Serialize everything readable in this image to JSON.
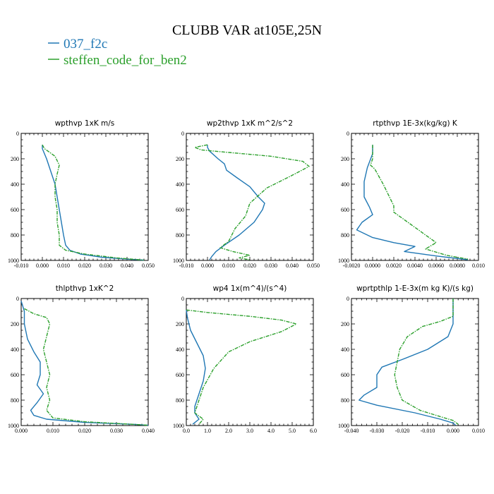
{
  "figure": {
    "title": "CLUBB VAR at105E,25N",
    "legend": [
      {
        "name": "037_f2c",
        "color": "#1f77b4"
      },
      {
        "name": "steffen_code_for_ben2",
        "color": "#2ca02c"
      }
    ]
  },
  "chart_data": [
    {
      "type": "line",
      "title": "wpthvp  1xK m/s",
      "xlim": [
        -0.01,
        0.05
      ],
      "ylim": [
        0,
        1000
      ],
      "y_inverted": true,
      "xticks": [
        "-0.010",
        "0.000",
        "0.010",
        "0.020",
        "0.030",
        "0.040",
        "0.050"
      ],
      "yticks": [
        "0",
        "200",
        "400",
        "600",
        "800",
        "1000"
      ],
      "series": [
        {
          "name": "037_f2c",
          "color": "#1f77b4",
          "dashed": false,
          "points": [
            [
              0.0,
              90
            ],
            [
              0.0,
              120
            ],
            [
              0.002,
              200
            ],
            [
              0.004,
              300
            ],
            [
              0.006,
              400
            ],
            [
              0.007,
              500
            ],
            [
              0.008,
              600
            ],
            [
              0.009,
              700
            ],
            [
              0.01,
              800
            ],
            [
              0.011,
              880
            ],
            [
              0.013,
              920
            ],
            [
              0.018,
              950
            ],
            [
              0.028,
              975
            ],
            [
              0.04,
              990
            ],
            [
              0.048,
              998
            ]
          ]
        },
        {
          "name": "steffen_code_for_ben2",
          "color": "#2ca02c",
          "dashed": true,
          "points": [
            [
              0.0,
              90
            ],
            [
              0.001,
              120
            ],
            [
              0.006,
              180
            ],
            [
              0.008,
              250
            ],
            [
              0.007,
              320
            ],
            [
              0.006,
              400
            ],
            [
              0.006,
              500
            ],
            [
              0.007,
              600
            ],
            [
              0.007,
              700
            ],
            [
              0.008,
              800
            ],
            [
              0.008,
              880
            ],
            [
              0.011,
              920
            ],
            [
              0.02,
              950
            ],
            [
              0.035,
              980
            ],
            [
              0.048,
              998
            ]
          ]
        }
      ]
    },
    {
      "type": "line",
      "title": "wp2thvp  1xK m^2/s^2",
      "xlim": [
        -0.01,
        0.05
      ],
      "ylim": [
        0,
        1000
      ],
      "y_inverted": true,
      "xticks": [
        "-0.010",
        "0.000",
        "0.010",
        "0.020",
        "0.030",
        "0.040",
        "0.050"
      ],
      "yticks": [
        "0",
        "200",
        "400",
        "600",
        "800",
        "1000"
      ],
      "series": [
        {
          "name": "037_f2c",
          "color": "#1f77b4",
          "dashed": false,
          "points": [
            [
              0.0,
              90
            ],
            [
              0.0,
              110
            ],
            [
              0.001,
              140
            ],
            [
              0.005,
              200
            ],
            [
              0.008,
              240
            ],
            [
              0.009,
              290
            ],
            [
              0.014,
              350
            ],
            [
              0.02,
              420
            ],
            [
              0.024,
              500
            ],
            [
              0.027,
              550
            ],
            [
              0.026,
              600
            ],
            [
              0.022,
              700
            ],
            [
              0.015,
              800
            ],
            [
              0.008,
              880
            ],
            [
              0.004,
              930
            ],
            [
              0.002,
              970
            ],
            [
              0.001,
              995
            ]
          ]
        },
        {
          "name": "steffen_code_for_ben2",
          "color": "#2ca02c",
          "dashed": true,
          "points": [
            [
              0.0,
              90
            ],
            [
              -0.006,
              110
            ],
            [
              -0.003,
              130
            ],
            [
              0.01,
              150
            ],
            [
              0.03,
              180
            ],
            [
              0.045,
              220
            ],
            [
              0.048,
              260
            ],
            [
              0.04,
              330
            ],
            [
              0.028,
              430
            ],
            [
              0.02,
              550
            ],
            [
              0.018,
              650
            ],
            [
              0.013,
              750
            ],
            [
              0.01,
              850
            ],
            [
              0.006,
              900
            ],
            [
              0.012,
              930
            ],
            [
              0.02,
              960
            ],
            [
              0.015,
              980
            ],
            [
              0.02,
              995
            ]
          ]
        }
      ]
    },
    {
      "type": "line",
      "title": "rtpthvp  1E-3x(kg/kg) K",
      "xlim": [
        -0.002,
        0.01
      ],
      "ylim": [
        0,
        1000
      ],
      "y_inverted": true,
      "xticks": [
        "-0.0020",
        "0.0000",
        "0.0020",
        "0.0040",
        "0.0060",
        "0.0080",
        "0.010"
      ],
      "yticks": [
        "0",
        "200",
        "400",
        "600",
        "800",
        "1000"
      ],
      "series": [
        {
          "name": "037_f2c",
          "color": "#1f77b4",
          "dashed": false,
          "points": [
            [
              0.0,
              90
            ],
            [
              0.0,
              160
            ],
            [
              -0.0005,
              270
            ],
            [
              -0.0008,
              380
            ],
            [
              -0.0008,
              500
            ],
            [
              -0.0003,
              580
            ],
            [
              0.0,
              640
            ],
            [
              -0.001,
              700
            ],
            [
              -0.0015,
              760
            ],
            [
              0.0,
              820
            ],
            [
              0.002,
              860
            ],
            [
              0.004,
              890
            ],
            [
              0.003,
              930
            ],
            [
              0.006,
              965
            ],
            [
              0.009,
              995
            ]
          ]
        },
        {
          "name": "steffen_code_for_ben2",
          "color": "#2ca02c",
          "dashed": true,
          "points": [
            [
              0.0,
              90
            ],
            [
              0.0,
              200
            ],
            [
              -0.0002,
              250
            ],
            [
              0.0002,
              280
            ],
            [
              0.001,
              400
            ],
            [
              0.002,
              570
            ],
            [
              0.002,
              620
            ],
            [
              0.003,
              680
            ],
            [
              0.004,
              740
            ],
            [
              0.005,
              800
            ],
            [
              0.006,
              860
            ],
            [
              0.005,
              910
            ],
            [
              0.007,
              960
            ],
            [
              0.009,
              990
            ]
          ]
        }
      ]
    },
    {
      "type": "line",
      "title": "thlpthvp  1xK^2",
      "xlim": [
        0.0,
        0.04
      ],
      "ylim": [
        0,
        1000
      ],
      "y_inverted": true,
      "xticks": [
        "0.000",
        "0.010",
        "0.020",
        "0.030",
        "0.040"
      ],
      "yticks": [
        "0",
        "200",
        "400",
        "600",
        "800",
        "1000"
      ],
      "series": [
        {
          "name": "037_f2c",
          "color": "#1f77b4",
          "dashed": false,
          "points": [
            [
              0.0,
              20
            ],
            [
              0.001,
              100
            ],
            [
              0.001,
              200
            ],
            [
              0.002,
              320
            ],
            [
              0.004,
              420
            ],
            [
              0.006,
              500
            ],
            [
              0.006,
              600
            ],
            [
              0.005,
              680
            ],
            [
              0.007,
              750
            ],
            [
              0.005,
              820
            ],
            [
              0.003,
              880
            ],
            [
              0.004,
              920
            ],
            [
              0.008,
              950
            ],
            [
              0.02,
              975
            ],
            [
              0.035,
              990
            ],
            [
              0.04,
              998
            ]
          ]
        },
        {
          "name": "steffen_code_for_ben2",
          "color": "#2ca02c",
          "dashed": true,
          "points": [
            [
              0.001,
              80
            ],
            [
              0.004,
              120
            ],
            [
              0.008,
              150
            ],
            [
              0.009,
              200
            ],
            [
              0.008,
              300
            ],
            [
              0.007,
              400
            ],
            [
              0.008,
              500
            ],
            [
              0.009,
              600
            ],
            [
              0.008,
              700
            ],
            [
              0.009,
              800
            ],
            [
              0.008,
              880
            ],
            [
              0.01,
              940
            ],
            [
              0.02,
              970
            ],
            [
              0.035,
              990
            ],
            [
              0.04,
              998
            ]
          ]
        }
      ]
    },
    {
      "type": "line",
      "title": "wp4  1x(m^4)/(s^4)",
      "xlim": [
        0.0,
        6.0
      ],
      "ylim": [
        0,
        1000
      ],
      "y_inverted": true,
      "xticks": [
        "0.0",
        "1.0",
        "2.0",
        "3.0",
        "4.0",
        "5.0",
        "6.0"
      ],
      "yticks": [
        "0",
        "200",
        "400",
        "600",
        "800",
        "1000"
      ],
      "series": [
        {
          "name": "037_f2c",
          "color": "#1f77b4",
          "dashed": false,
          "points": [
            [
              0.0,
              90
            ],
            [
              0.05,
              150
            ],
            [
              0.2,
              250
            ],
            [
              0.5,
              350
            ],
            [
              0.8,
              450
            ],
            [
              0.9,
              550
            ],
            [
              0.8,
              650
            ],
            [
              0.6,
              750
            ],
            [
              0.4,
              850
            ],
            [
              0.4,
              900
            ],
            [
              0.6,
              950
            ],
            [
              0.3,
              990
            ]
          ]
        },
        {
          "name": "steffen_code_for_ben2",
          "color": "#2ca02c",
          "dashed": true,
          "points": [
            [
              0.0,
              90
            ],
            [
              1.0,
              110
            ],
            [
              3.0,
              140
            ],
            [
              4.5,
              170
            ],
            [
              5.2,
              200
            ],
            [
              4.5,
              260
            ],
            [
              3.0,
              340
            ],
            [
              2.0,
              420
            ],
            [
              1.3,
              550
            ],
            [
              0.8,
              700
            ],
            [
              0.5,
              850
            ],
            [
              0.4,
              900
            ],
            [
              0.8,
              950
            ],
            [
              0.6,
              990
            ]
          ]
        }
      ]
    },
    {
      "type": "line",
      "title": "wprtpthlp  1-E-3x(m kg K)/(s kg)",
      "xlim": [
        -0.04,
        0.01
      ],
      "ylim": [
        0,
        1000
      ],
      "y_inverted": true,
      "xticks": [
        "-0.040",
        "-0.030",
        "-0.020",
        "-0.010",
        "0.000",
        "0.010"
      ],
      "yticks": [
        "0",
        "200",
        "400",
        "600",
        "800",
        "1000"
      ],
      "series": [
        {
          "name": "037_f2c",
          "color": "#1f77b4",
          "dashed": false,
          "points": [
            [
              0.0,
              0
            ],
            [
              0.0,
              200
            ],
            [
              -0.002,
              300
            ],
            [
              -0.01,
              400
            ],
            [
              -0.02,
              480
            ],
            [
              -0.028,
              540
            ],
            [
              -0.03,
              600
            ],
            [
              -0.03,
              700
            ],
            [
              -0.035,
              760
            ],
            [
              -0.037,
              800
            ],
            [
              -0.03,
              840
            ],
            [
              -0.015,
              900
            ],
            [
              -0.005,
              950
            ],
            [
              0.0,
              980
            ],
            [
              0.001,
              998
            ]
          ]
        },
        {
          "name": "steffen_code_for_ben2",
          "color": "#2ca02c",
          "dashed": true,
          "points": [
            [
              0.0,
              0
            ],
            [
              0.0,
              140
            ],
            [
              -0.005,
              180
            ],
            [
              -0.012,
              220
            ],
            [
              -0.018,
              300
            ],
            [
              -0.021,
              400
            ],
            [
              -0.022,
              500
            ],
            [
              -0.023,
              600
            ],
            [
              -0.022,
              700
            ],
            [
              -0.02,
              800
            ],
            [
              -0.013,
              880
            ],
            [
              -0.005,
              930
            ],
            [
              0.0,
              960
            ],
            [
              0.002,
              990
            ]
          ]
        }
      ]
    }
  ]
}
